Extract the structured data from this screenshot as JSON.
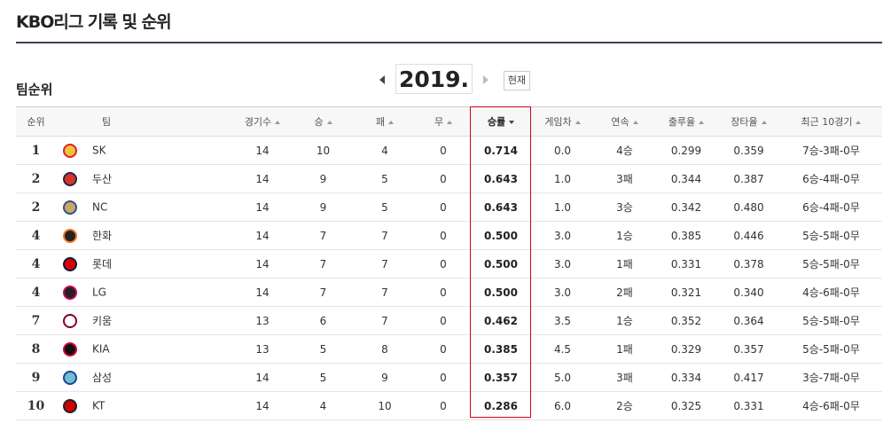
{
  "header": {
    "title": "KBO리그 기록 및 순위"
  },
  "section": {
    "title": "팀순위",
    "year": "2019.",
    "current_button": "현재"
  },
  "table": {
    "headers": [
      "순위",
      "팀",
      "경기수",
      "승",
      "패",
      "무",
      "승률",
      "게임차",
      "연속",
      "출루율",
      "장타율",
      "최근 10경기"
    ],
    "rows": [
      [
        "1",
        "SK",
        "14",
        "10",
        "4",
        "0",
        "0.714",
        "0.0",
        "4승",
        "0.299",
        "0.359",
        "7승-3패-0무"
      ],
      [
        "2",
        "두산",
        "14",
        "9",
        "5",
        "0",
        "0.643",
        "1.0",
        "3패",
        "0.344",
        "0.387",
        "6승-4패-0무"
      ],
      [
        "2",
        "NC",
        "14",
        "9",
        "5",
        "0",
        "0.643",
        "1.0",
        "3승",
        "0.342",
        "0.480",
        "6승-4패-0무"
      ],
      [
        "4",
        "한화",
        "14",
        "7",
        "7",
        "0",
        "0.500",
        "3.0",
        "1승",
        "0.385",
        "0.446",
        "5승-5패-0무"
      ],
      [
        "4",
        "롯데",
        "14",
        "7",
        "7",
        "0",
        "0.500",
        "3.0",
        "1패",
        "0.331",
        "0.378",
        "5승-5패-0무"
      ],
      [
        "4",
        "LG",
        "14",
        "7",
        "7",
        "0",
        "0.500",
        "3.0",
        "2패",
        "0.321",
        "0.340",
        "4승-6패-0무"
      ],
      [
        "7",
        "키움",
        "13",
        "6",
        "7",
        "0",
        "0.462",
        "3.5",
        "1승",
        "0.352",
        "0.364",
        "5승-5패-0무"
      ],
      [
        "8",
        "KIA",
        "13",
        "5",
        "8",
        "0",
        "0.385",
        "4.5",
        "1패",
        "0.329",
        "0.357",
        "5승-5패-0무"
      ],
      [
        "9",
        "삼성",
        "14",
        "5",
        "9",
        "0",
        "0.357",
        "5.0",
        "3패",
        "0.334",
        "0.417",
        "3승-7패-0무"
      ],
      [
        "10",
        "KT",
        "14",
        "4",
        "10",
        "0",
        "0.286",
        "6.0",
        "2승",
        "0.325",
        "0.331",
        "4승-6패-0무"
      ]
    ]
  }
}
